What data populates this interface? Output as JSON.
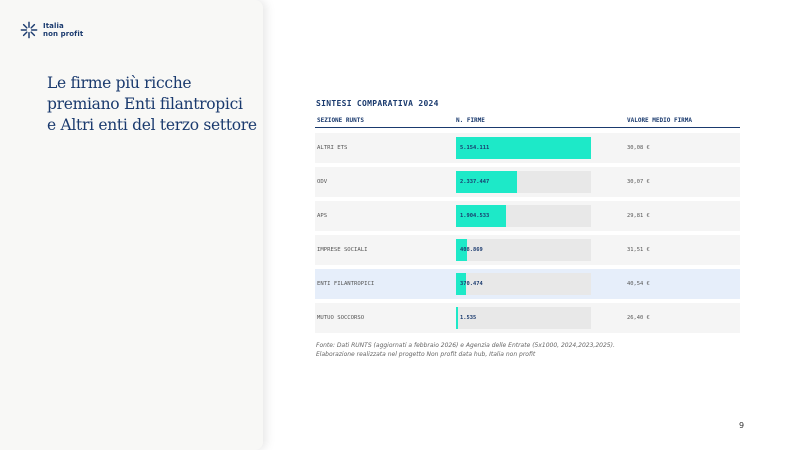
{
  "brand": {
    "line1": "Italia",
    "line2": "non profit",
    "logo_icon": "asterisk-star-icon",
    "color": "#1a3a6e"
  },
  "title_lines": [
    "Le firme più ricche",
    "premiano Enti filantropici",
    "e Altri enti del terzo settore"
  ],
  "page_number": "9",
  "source_lines": [
    "Fonte: Dati RUNTS (aggiornati a febbraio 2026) e Agenzia delle Entrate (5x1000, 2024,2023,2025).",
    "Elaborazione realizzata nel progetto Non profit data hub, Italia non profit"
  ],
  "chart_data": {
    "type": "table",
    "title": "SINTESI COMPARATIVA 2024",
    "columns": [
      "SEZIONE RUNTS",
      "N. FIRME",
      "VALORE MEDIO FIRMA"
    ],
    "rows": [
      {
        "category": "ALTRI ETS",
        "signatures": 5154111,
        "signatures_label": "5.154.111",
        "avg_value": 30.08,
        "avg_label": "30,08 €",
        "highlight": false
      },
      {
        "category": "ODV",
        "signatures": 2337447,
        "signatures_label": "2.337.447",
        "avg_value": 30.07,
        "avg_label": "30,07 €",
        "highlight": false
      },
      {
        "category": "APS",
        "signatures": 1904533,
        "signatures_label": "1.904.533",
        "avg_value": 29.81,
        "avg_label": "29,81 €",
        "highlight": false
      },
      {
        "category": "IMPRESE SOCIALI",
        "signatures": 408869,
        "signatures_label": "408.869",
        "avg_value": 31.51,
        "avg_label": "31,51 €",
        "highlight": false
      },
      {
        "category": "ENTI FILANTROPICI",
        "signatures": 370474,
        "signatures_label": "370.474",
        "avg_value": 40.54,
        "avg_label": "40,54 €",
        "highlight": true
      },
      {
        "category": "MUTUO SOCCORSO",
        "signatures": 1535,
        "signatures_label": "1.535",
        "avg_value": 26.4,
        "avg_label": "26,40 €",
        "highlight": false
      }
    ],
    "bar_color": "#1de9c8",
    "track_color": "#e8e8e8",
    "highlight_color": "#e6eefa"
  }
}
